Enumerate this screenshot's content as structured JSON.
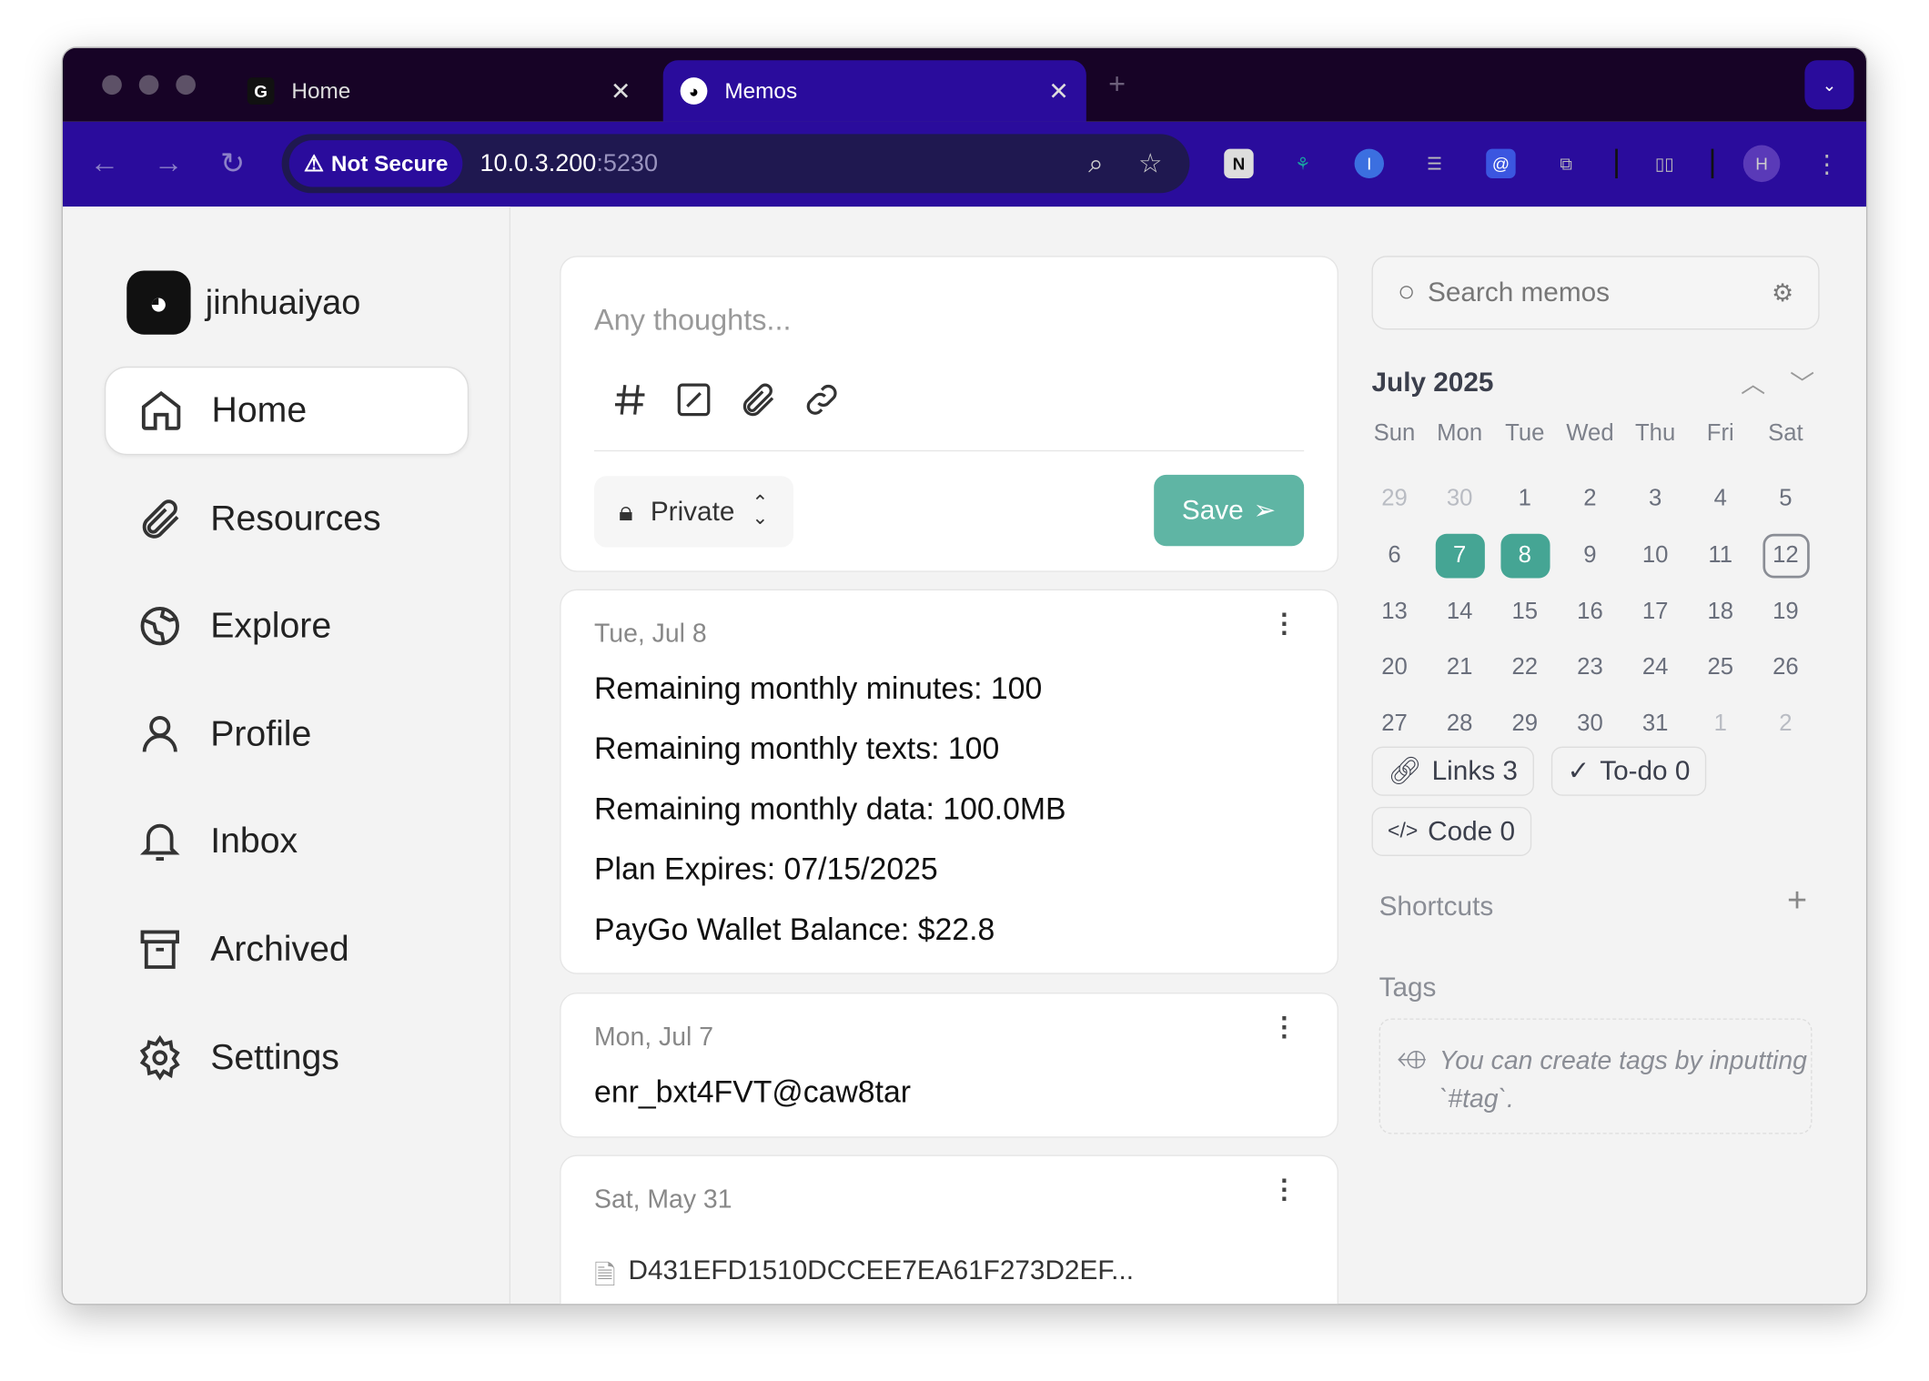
{
  "browser": {
    "tabs": [
      {
        "label": "Home",
        "favicon": "G"
      },
      {
        "label": "Memos",
        "favicon": "memos-logo"
      }
    ],
    "security_label": "Not Secure",
    "url_host": "10.0.3.200",
    "url_port": ":5230",
    "profile_initial": "H"
  },
  "sidebar": {
    "username": "jinhuaiyao",
    "items": [
      {
        "label": "Home",
        "icon": "home-icon"
      },
      {
        "label": "Resources",
        "icon": "paperclip-icon"
      },
      {
        "label": "Explore",
        "icon": "globe-icon"
      },
      {
        "label": "Profile",
        "icon": "user-icon"
      },
      {
        "label": "Inbox",
        "icon": "bell-icon"
      },
      {
        "label": "Archived",
        "icon": "archive-icon"
      },
      {
        "label": "Settings",
        "icon": "gear-icon"
      }
    ]
  },
  "editor": {
    "placeholder": "Any thoughts...",
    "visibility": "Private",
    "save_label": "Save"
  },
  "memos": [
    {
      "date": "Tue, Jul 8",
      "lines": [
        "Remaining monthly minutes: 100",
        "Remaining monthly texts: 100",
        "Remaining monthly data: 100.0MB",
        "Plan Expires: 07/15/2025",
        "PayGo Wallet Balance: $22.8"
      ]
    },
    {
      "date": "Mon, Jul 7",
      "lines": [
        "enr_bxt4FVT@caw8tar"
      ]
    },
    {
      "date": "Sat, May 31",
      "attachment": "D431EFD1510DCCEE7EA61F273D2EF..."
    }
  ],
  "right": {
    "search_placeholder": "Search memos",
    "calendar": {
      "month": "July 2025",
      "weekdays": [
        "Sun",
        "Mon",
        "Tue",
        "Wed",
        "Thu",
        "Fri",
        "Sat"
      ],
      "days": [
        "29",
        "30",
        "1",
        "2",
        "3",
        "4",
        "5",
        "6",
        "7",
        "8",
        "9",
        "10",
        "11",
        "12",
        "13",
        "14",
        "15",
        "16",
        "17",
        "18",
        "19",
        "20",
        "21",
        "22",
        "23",
        "24",
        "25",
        "26",
        "27",
        "28",
        "29",
        "30",
        "31",
        "1",
        "2"
      ],
      "highlighted": [
        "7",
        "8"
      ],
      "today": "12",
      "accent": "#45a594"
    },
    "stats": [
      {
        "label": "Links 3",
        "icon": "link-icon"
      },
      {
        "label": "To-do 0",
        "icon": "check-circle-icon"
      },
      {
        "label": "Code 0",
        "icon": "code-icon"
      }
    ],
    "shortcuts_label": "Shortcuts",
    "tags_label": "Tags",
    "tags_empty": "You can create tags by inputting `#tag`."
  }
}
